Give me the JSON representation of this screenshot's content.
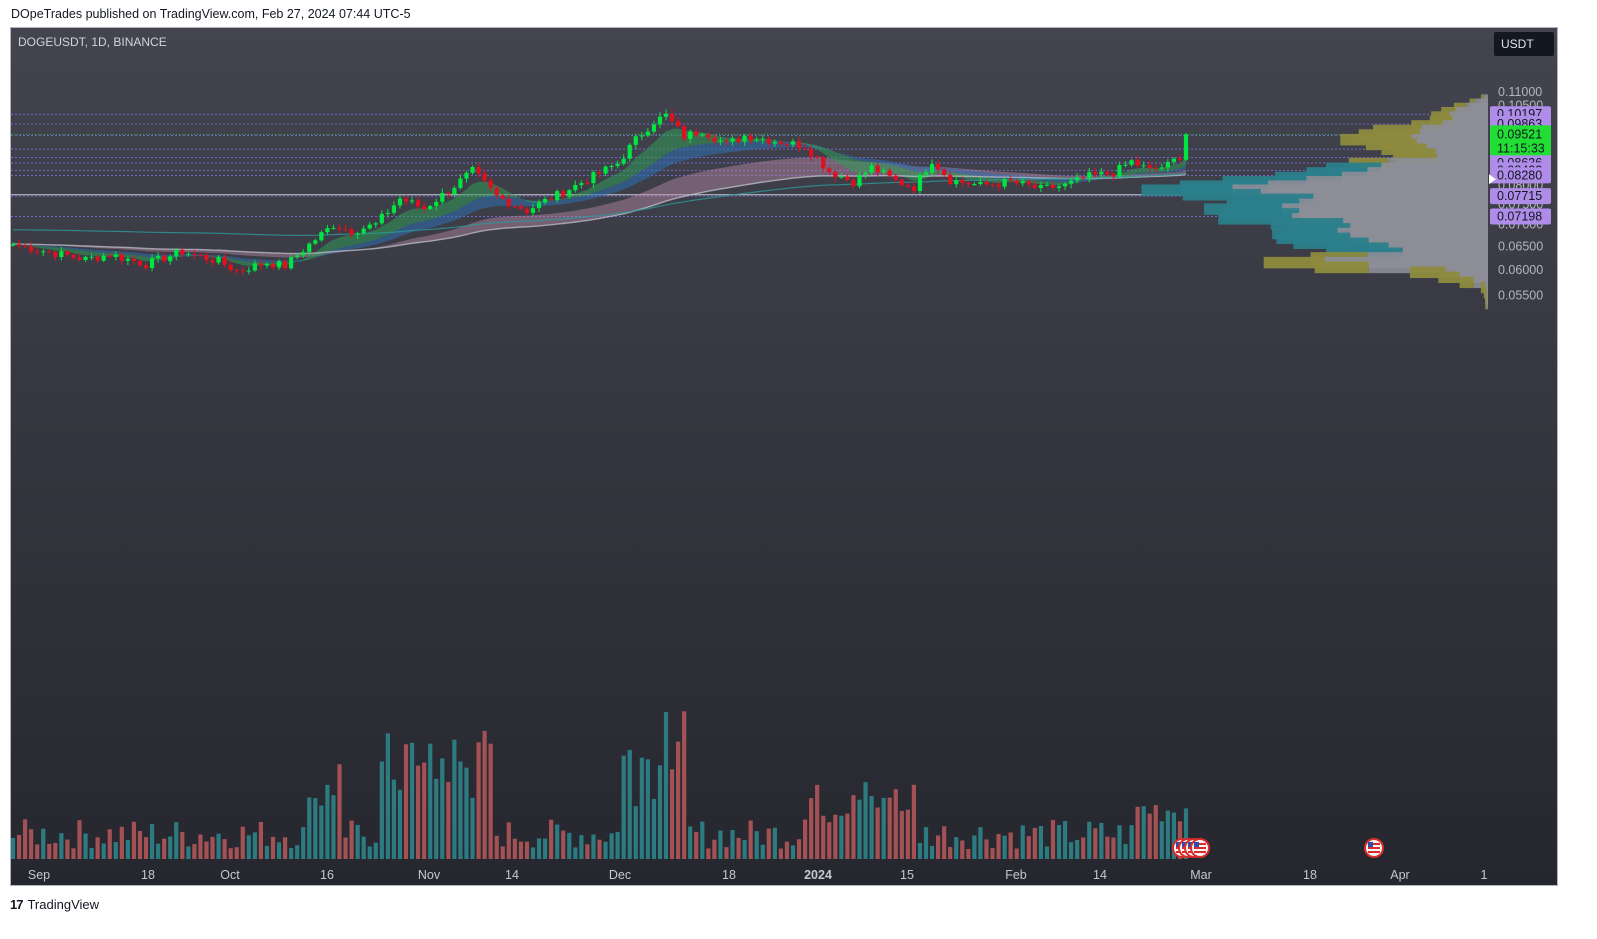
{
  "header": {
    "published": "DOpeTrades published on TradingView.com, Feb 27, 2024 07:44 UTC-5"
  },
  "symbol": "DOGEUSDT, 1D, BINANCE",
  "currency": "USDT",
  "footer": {
    "logo_text": "17",
    "brand": "TradingView"
  },
  "colors": {
    "up": "#00e640",
    "down": "#e0101e",
    "vol_up": "#2e8a8f",
    "vol_down": "#b8585c",
    "level_line": "#7e6cd8",
    "price_tag": "#ae8ce8",
    "current_tag": "#22dd33",
    "vp_teal": "#2b7f8c",
    "vp_olive": "#8d8a3e",
    "vp_grey": "#8d8e97"
  },
  "chart_data": {
    "type": "candlestick",
    "y_scale": "log",
    "y_range": [
      0.052,
      0.112
    ],
    "y_ticks": [
      "0.11000",
      "0.10500",
      "0.10000",
      "0.09500",
      "0.09000",
      "0.08500",
      "0.08000",
      "0.07500",
      "0.07000",
      "0.06500",
      "0.06000",
      "0.05500"
    ],
    "x_ticks": [
      "Sep",
      "18",
      "Oct",
      "16",
      "Nov",
      "14",
      "Dec",
      "18",
      "2024",
      "15",
      "Feb",
      "14",
      "Mar",
      "18",
      "Apr",
      "1"
    ],
    "level_lines": [
      "0.10197",
      "0.09863",
      "0.09488",
      "0.09053",
      "0.08798",
      "0.08636",
      "0.08422",
      "0.08280",
      "0.07715",
      "0.07198"
    ],
    "current_price": "0.09521",
    "countdown": "11:15:33",
    "anchors": [
      [
        0,
        0.0655
      ],
      [
        5,
        0.064
      ],
      [
        12,
        0.0622
      ],
      [
        16,
        0.0632
      ],
      [
        22,
        0.0612
      ],
      [
        28,
        0.0638
      ],
      [
        34,
        0.0618
      ],
      [
        37,
        0.0598
      ],
      [
        42,
        0.0615
      ],
      [
        45,
        0.0608
      ],
      [
        49,
        0.0654
      ],
      [
        53,
        0.07
      ],
      [
        56,
        0.0685
      ],
      [
        60,
        0.07
      ],
      [
        64,
        0.0765
      ],
      [
        68,
        0.074
      ],
      [
        72,
        0.0785
      ],
      [
        76,
        0.084
      ],
      [
        80,
        0.077
      ],
      [
        85,
        0.0735
      ],
      [
        91,
        0.0782
      ],
      [
        96,
        0.0825
      ],
      [
        100,
        0.0862
      ],
      [
        103,
        0.0935
      ],
      [
        106,
        0.0995
      ],
      [
        108,
        0.1015
      ],
      [
        111,
        0.0945
      ],
      [
        114,
        0.0965
      ],
      [
        118,
        0.092
      ],
      [
        121,
        0.0948
      ],
      [
        125,
        0.0935
      ],
      [
        131,
        0.0915
      ],
      [
        135,
        0.084
      ],
      [
        139,
        0.081
      ],
      [
        142,
        0.085
      ],
      [
        146,
        0.0812
      ],
      [
        149,
        0.0795
      ],
      [
        152,
        0.0872
      ],
      [
        155,
        0.0815
      ],
      [
        160,
        0.08
      ],
      [
        165,
        0.081
      ],
      [
        170,
        0.079
      ],
      [
        174,
        0.08
      ],
      [
        178,
        0.0825
      ],
      [
        182,
        0.0835
      ],
      [
        185,
        0.0868
      ],
      [
        188,
        0.0842
      ],
      [
        191,
        0.0857
      ],
      [
        193,
        0.0885
      ],
      [
        194,
        0.0952
      ]
    ],
    "volume_range": [
      0,
      0.0085
    ],
    "volume_profile_rows": [
      {
        "price": 0.107,
        "up": 0.2,
        "down": 0.3
      },
      {
        "price": 0.1055,
        "up": 0.4,
        "down": 0.9
      },
      {
        "price": 0.104,
        "up": 0.9,
        "down": 1.5
      },
      {
        "price": 0.1025,
        "up": 1.0,
        "down": 2.3
      },
      {
        "price": 0.101,
        "up": 1.3,
        "down": 2.7
      },
      {
        "price": 0.0995,
        "up": 1.6,
        "down": 2.5
      },
      {
        "price": 0.098,
        "up": 2.2,
        "down": 3.2
      },
      {
        "price": 0.0965,
        "up": 3.4,
        "down": 4.7
      },
      {
        "price": 0.095,
        "up": 4.3,
        "down": 4.8
      },
      {
        "price": 0.0935,
        "up": 5.0,
        "down": 5.4
      },
      {
        "price": 0.092,
        "up": 3.6,
        "down": 5.0
      },
      {
        "price": 0.0905,
        "up": 3.2,
        "down": 4.3
      },
      {
        "price": 0.089,
        "up": 3.0,
        "down": 3.7
      },
      {
        "price": 0.0875,
        "up": 2.8,
        "down": 3.6
      },
      {
        "price": 0.0862,
        "up": 2.8,
        "down": 7.0
      },
      {
        "price": 0.0848,
        "up": 3.9,
        "down": 7.5
      },
      {
        "price": 0.0835,
        "up": 4.3,
        "down": 8.5
      },
      {
        "price": 0.0822,
        "up": 4.7,
        "down": 10.3
      },
      {
        "price": 0.081,
        "up": 5.9,
        "down": 12.8
      },
      {
        "price": 0.0798,
        "up": 6.2,
        "down": 15.5
      },
      {
        "price": 0.0787,
        "up": 6.4,
        "down": 18.0
      },
      {
        "price": 0.0775,
        "up": 5.5,
        "down": 16.0
      },
      {
        "price": 0.0763,
        "up": 5.6,
        "down": 12.3
      },
      {
        "price": 0.075,
        "up": 5.1,
        "down": 13.3
      },
      {
        "price": 0.0738,
        "up": 5.5,
        "down": 14.5
      },
      {
        "price": 0.0726,
        "up": 5.3,
        "down": 13.3
      },
      {
        "price": 0.0714,
        "up": 5.2,
        "down": 13.8
      },
      {
        "price": 0.0702,
        "up": 5.1,
        "down": 10.2
      },
      {
        "price": 0.069,
        "up": 4.7,
        "down": 9.7
      },
      {
        "price": 0.0679,
        "up": 4.6,
        "down": 10.6
      },
      {
        "price": 0.0668,
        "up": 5.2,
        "down": 9.7
      },
      {
        "price": 0.0657,
        "up": 5.3,
        "down": 8.4
      },
      {
        "price": 0.0646,
        "up": 4.4,
        "down": 7.0
      },
      {
        "price": 0.0635,
        "up": 4.3,
        "down": 6.0
      },
      {
        "price": 0.0625,
        "up": 4.0,
        "down": 8.5
      },
      {
        "price": 0.0615,
        "up": 4.3,
        "down": 11.5
      },
      {
        "price": 0.0605,
        "up": 3.8,
        "down": 8.4
      },
      {
        "price": 0.0595,
        "up": 2.5,
        "down": 3.0
      },
      {
        "price": 0.0585,
        "up": 1.5,
        "down": 2.0
      },
      {
        "price": 0.0575,
        "up": 1.0,
        "down": 1.0
      },
      {
        "price": 0.0565,
        "up": 0.3,
        "down": 0.2
      },
      {
        "price": 0.0555,
        "up": 0.2,
        "down": 0.1
      },
      {
        "price": 0.0545,
        "up": 0.1,
        "down": 0.1
      },
      {
        "price": 0.0535,
        "up": 0.1,
        "down": 0.1
      }
    ]
  }
}
